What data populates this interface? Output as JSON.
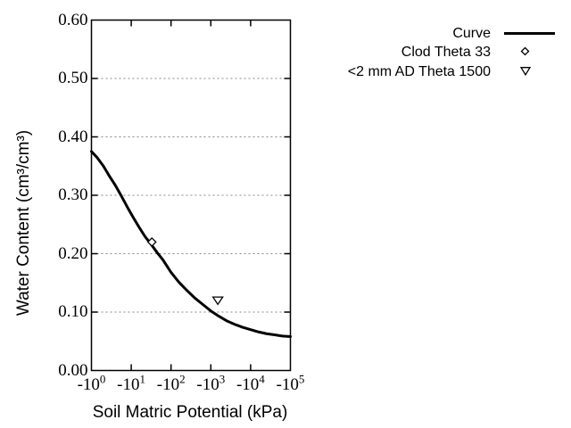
{
  "figure": {
    "background": "#ffffff",
    "line_color": "#000000",
    "grid_color": "#888888",
    "marker_fill": "#ffffff"
  },
  "chart_data": {
    "type": "line",
    "title": "",
    "xlabel": "Soil Matric Potential (kPa)",
    "ylabel": "Water Content (cm³/cm³)",
    "x_axis": {
      "scale": "negative log10",
      "tick_base": "-10",
      "tick_exponents": [
        "0",
        "1",
        "2",
        "3",
        "4",
        "5"
      ],
      "log_range": [
        0,
        5
      ],
      "grid": false
    },
    "y_axis": {
      "min": 0.0,
      "max": 0.6,
      "step": 0.1,
      "tick_labels": [
        "0.00",
        "0.10",
        "0.20",
        "0.30",
        "0.40",
        "0.50",
        "0.60"
      ],
      "grid": "dotted horizontal at 0.10 through 0.50"
    },
    "series": [
      {
        "name": "Curve",
        "type": "line",
        "marker": "none",
        "points_log10_theta": [
          [
            0.0,
            0.375
          ],
          [
            0.15,
            0.364
          ],
          [
            0.3,
            0.35
          ],
          [
            0.45,
            0.333
          ],
          [
            0.6,
            0.317
          ],
          [
            0.75,
            0.299
          ],
          [
            0.9,
            0.28
          ],
          [
            1.05,
            0.262
          ],
          [
            1.2,
            0.245
          ],
          [
            1.35,
            0.229
          ],
          [
            1.5,
            0.216
          ],
          [
            1.65,
            0.202
          ],
          [
            1.8,
            0.189
          ],
          [
            2.0,
            0.168
          ],
          [
            2.2,
            0.151
          ],
          [
            2.4,
            0.137
          ],
          [
            2.6,
            0.124
          ],
          [
            2.8,
            0.113
          ],
          [
            3.0,
            0.102
          ],
          [
            3.2,
            0.093
          ],
          [
            3.4,
            0.085
          ],
          [
            3.6,
            0.079
          ],
          [
            3.8,
            0.074
          ],
          [
            4.0,
            0.07
          ],
          [
            4.2,
            0.066
          ],
          [
            4.4,
            0.063
          ],
          [
            4.6,
            0.061
          ],
          [
            4.8,
            0.059
          ],
          [
            5.0,
            0.058
          ]
        ]
      },
      {
        "name": "Clod Theta 33",
        "type": "scatter",
        "marker": "open-diamond",
        "points_kpa_theta": [
          [
            -33,
            0.22
          ]
        ]
      },
      {
        "name": "<2 mm AD Theta 1500",
        "type": "scatter",
        "marker": "open-triangle-down",
        "points_kpa_theta": [
          [
            -1500,
            0.12
          ]
        ]
      }
    ],
    "legend": {
      "position": "outside-top-right",
      "entries": [
        "Curve",
        "Clod Theta 33",
        "<2 mm AD Theta 1500"
      ]
    }
  }
}
